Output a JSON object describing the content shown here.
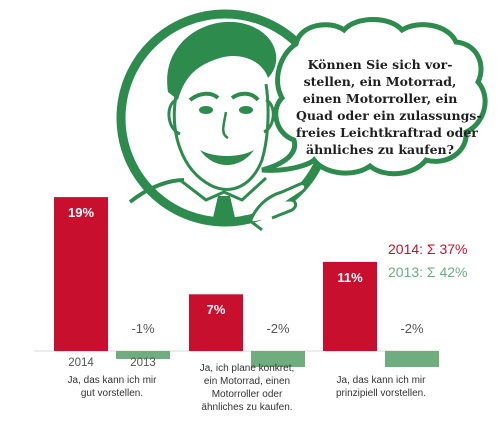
{
  "question": {
    "lines": [
      "Können Sie sich vor-",
      "stellen, ein Motorrad,",
      "einen Motorroller, ein",
      "Quad oder ein zulassungs-",
      "freies Leichtkraftrad oder",
      "ähnliches zu kaufen?"
    ]
  },
  "totals": {
    "y2014": "2014: Σ 37%",
    "y2013": "2013: Σ 42%"
  },
  "colors": {
    "y2014": "#c8102e",
    "y2013": "#6fad7f",
    "illustration": "#2e8b4e"
  },
  "chart_data": {
    "type": "bar",
    "series": [
      {
        "name": "2014",
        "values": [
          19,
          7,
          11
        ]
      },
      {
        "name": "2013",
        "values": [
          -1,
          -2,
          -2
        ]
      }
    ],
    "value_labels": {
      "y2014": [
        "19%",
        "7%",
        "11%"
      ],
      "y2013": [
        "-1%",
        "-2%",
        "-2%"
      ]
    },
    "categories": [
      [
        "Ja, das kann ich mir",
        "gut vorstellen."
      ],
      [
        "Ja, ich plane konkret,",
        "ein Motorrad, einen",
        "Motorroller oder",
        "ähnliches zu kaufen."
      ],
      [
        "Ja, das kann ich mir",
        "prinzipiell vorstellen."
      ]
    ],
    "year_labels": [
      "2014",
      "2013"
    ]
  }
}
